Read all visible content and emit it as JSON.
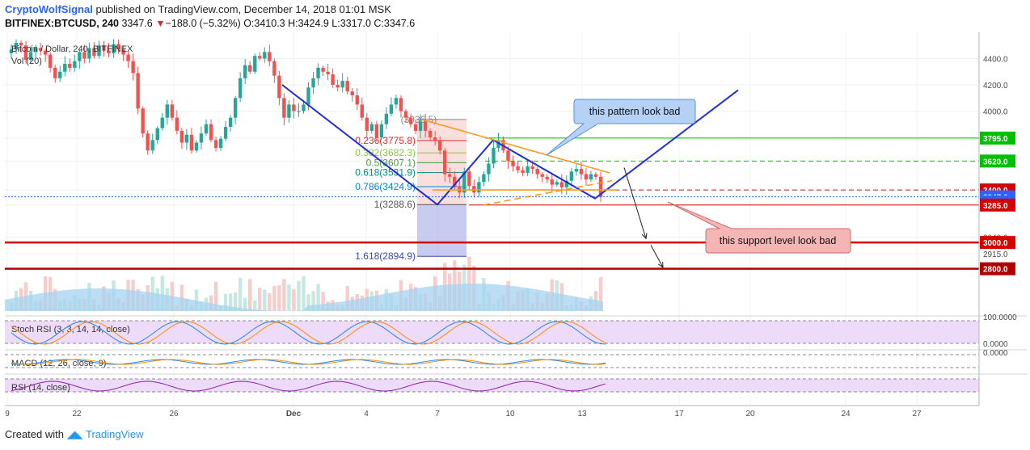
{
  "header": {
    "author": "CryptoWolfSignal",
    "published": "published on TradingView.com, December 14, 2018 01:01 MSK",
    "symbol_line": "BITFINEX:BTCUSD, 240",
    "last": "3347.6",
    "arrow": "▼",
    "change": "−188.0 (−5.32%)",
    "ohlc": "O:3410.3 H:3424.9 L:3317.0 C:3347.6"
  },
  "footer": {
    "created_with": "Created with",
    "brand": "TradingView"
  },
  "colors": {
    "bull": "#26a69a",
    "bear": "#ef5350",
    "pattern": "#1f2fd4",
    "trend": "#f59a23",
    "resistance": "#00c000",
    "support": "#d50000"
  },
  "chart_data": {
    "type": "candlestick",
    "title": "Bitcoin / Dollar, 240, BITFINEX",
    "volume_label": "Vol (20)",
    "x_ticks": [
      "9",
      "22",
      "26",
      "Dec",
      "4",
      "7",
      "10",
      "13",
      "17",
      "20",
      "24",
      "27"
    ],
    "y_ticks": [
      "4400.0",
      "4200.0",
      "4000.0",
      "3795.0",
      "3620.0",
      "3400.0",
      "3347.6",
      "3285.0",
      "3040.0",
      "3000.0",
      "2915.0",
      "2800.0"
    ],
    "ylim": [
      2790,
      4580
    ],
    "price_tags": [
      {
        "text": "3795.0",
        "value": 3795,
        "color": "#00c000"
      },
      {
        "text": "3620.0",
        "value": 3620,
        "color": "#00c000"
      },
      {
        "text": "3400.0",
        "value": 3400,
        "color": "#d50000"
      },
      {
        "text": "3347.6",
        "value": 3347.6,
        "color": "#2962ff"
      },
      {
        "text": "01:58:13",
        "value": 3310,
        "color": "#2962ff"
      },
      {
        "text": "3285.0",
        "value": 3285,
        "color": "#d50000"
      },
      {
        "text": "3000.0",
        "value": 3000,
        "color": "#d50000"
      },
      {
        "text": "2800.0",
        "value": 2800,
        "color": "#b00000"
      }
    ],
    "levels": [
      {
        "value": 3795,
        "style": "solid",
        "color": "#00c000"
      },
      {
        "value": 3620,
        "style": "dashed",
        "color": "#00c000"
      },
      {
        "value": 3400,
        "style": "dashed",
        "color": "#b71c1c"
      },
      {
        "value": 3347.6,
        "style": "dotted",
        "color": "#2962ff"
      },
      {
        "value": 3285,
        "style": "solid",
        "color": "#d50000"
      },
      {
        "value": 3000,
        "style": "thick",
        "color": "#d50000"
      },
      {
        "value": 2800,
        "style": "thick",
        "color": "#b00000"
      }
    ],
    "fibonacci": [
      {
        "label": "(3936.5)",
        "value": 3936.5
      },
      {
        "label": "0.236(3775.8)",
        "value": 3775.8
      },
      {
        "label": "0.382(3682.3)",
        "value": 3682.3
      },
      {
        "label": "0.5(3607.1)",
        "value": 3607.1
      },
      {
        "label": "0.618(3531.9)",
        "value": 3531.9
      },
      {
        "label": "0.786(3424.9)",
        "value": 3424.9
      },
      {
        "label": "1(3288.6)",
        "value": 3288.6
      },
      {
        "label": "1.618(2894.9)",
        "value": 2894.9
      }
    ],
    "pattern_w": [
      {
        "day": 0.6,
        "price": 4200
      },
      {
        "day": 7.0,
        "price": 3288
      },
      {
        "day": 9.3,
        "price": 3780
      },
      {
        "day": 13.5,
        "price": 3335
      },
      {
        "day": 19.4,
        "price": 4160
      }
    ],
    "projection_arrows": [
      {
        "from": [
          14.7,
          3570
        ],
        "to": [
          15.6,
          3030
        ]
      },
      {
        "from": [
          15.8,
          2980
        ],
        "to": [
          16.3,
          2810
        ]
      }
    ],
    "callouts": [
      {
        "text": "this pattern look bad",
        "bg": "#b5d1f5"
      },
      {
        "text": "this support level look bad",
        "bg": "#f5b5b5"
      }
    ],
    "candles_close": [
      4470,
      4520,
      4500,
      4390,
      4450,
      4480,
      4460,
      4430,
      4330,
      4250,
      4300,
      4360,
      4330,
      4380,
      4450,
      4400,
      4480,
      4420,
      4500,
      4460,
      4440,
      4510,
      4470,
      4430,
      4380,
      4290,
      4020,
      3830,
      3700,
      3780,
      3870,
      3950,
      4050,
      3950,
      3850,
      3760,
      3820,
      3700,
      3760,
      3830,
      3900,
      3780,
      3720,
      3790,
      3880,
      3950,
      4100,
      4250,
      4350,
      4300,
      4420,
      4400,
      4450,
      4380,
      4270,
      4100,
      3950,
      4050,
      4000,
      4000,
      4050,
      4180,
      4250,
      4330,
      4300,
      4280,
      4200,
      4180,
      4230,
      4150,
      4120,
      4050,
      3950,
      3850,
      3900,
      3800,
      3900,
      3980,
      4050,
      4100,
      4000,
      3950,
      3900,
      3850,
      3920,
      3850,
      3800,
      3780,
      3700,
      3520,
      3500,
      3420,
      3380,
      3540,
      3430,
      3380,
      3460,
      3520,
      3600,
      3720,
      3780,
      3700,
      3620,
      3580,
      3550,
      3530,
      3580,
      3560,
      3520,
      3500,
      3480,
      3440,
      3460,
      3420,
      3470,
      3540,
      3560,
      3520,
      3480,
      3520,
      3500,
      3347.6
    ],
    "indicators": [
      {
        "label": "Stoch RSI (3, 3, 14, 14, close)",
        "ticks": [
          "100.0000",
          "0.0000"
        ]
      },
      {
        "label": "MACD (12, 26, close, 9)",
        "ticks": [
          "0.0000"
        ]
      },
      {
        "label": "RSI (14, close)",
        "ticks": []
      }
    ]
  }
}
